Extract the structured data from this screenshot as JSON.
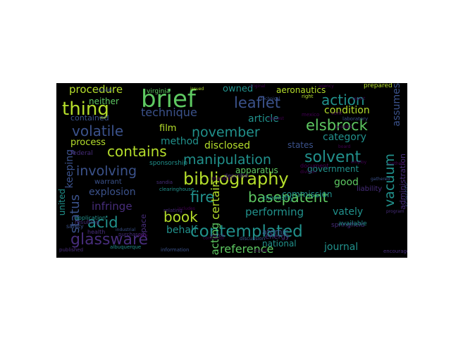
{
  "palette": {
    "background": "#000000",
    "yellow_green": "#b5de2b",
    "green": "#5ec962",
    "teal": "#21918c",
    "blue": "#3b528b",
    "purple": "#472d7b",
    "deep_purple": "#440154"
  },
  "words": [
    "brief",
    "bibliography",
    "contemplated",
    "glassware",
    "manipulation",
    "involving",
    "november",
    "contains",
    "solvent",
    "basepatent",
    "vacuum",
    "leaflet",
    "action",
    "elsbrock",
    "thing",
    "volatile",
    "book",
    "fire",
    "acid",
    "status",
    "certain",
    "technique",
    "procedure",
    "reference",
    "infringe",
    "process",
    "disclosed",
    "category",
    "explosion",
    "condition",
    "article",
    "film",
    "method",
    "performing",
    "assumes",
    "behalf",
    "journal",
    "good",
    "vately",
    "apparatus",
    "government",
    "acting",
    "owned",
    "aeronautics",
    "states",
    "keeping",
    "united",
    "neither",
    "contained",
    "commission",
    "national",
    "administration",
    "prepared",
    "atomic",
    "space",
    "warrant",
    "sponsorship",
    "chemistry",
    "liability",
    "energy",
    "laboratory",
    "federal",
    "application",
    "resulting",
    "safety",
    "health",
    "published",
    "albuquerque",
    "information",
    "clearinghouse",
    "sandia",
    "relating",
    "virginia",
    "springfield",
    "available",
    "document",
    "scientific",
    "encourage",
    "describe",
    "manual",
    "purchased",
    "mexico",
    "right",
    "issued",
    "cent",
    "discussion",
    "gathered",
    "board",
    "request",
    "industrial",
    "source",
    "technical",
    "report",
    "program",
    "outside",
    "stated",
    "original",
    "employ",
    "possible",
    "contractor",
    "data",
    "agency",
    "division",
    "includes",
    "method",
    "service",
    "copies"
  ]
}
